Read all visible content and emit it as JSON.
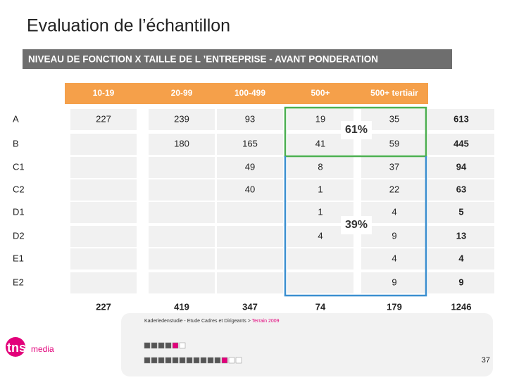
{
  "header": {
    "title": "Evaluation de l’échantillon",
    "banner": "NIVEAU DE FONCTION  X TAILLE DE L ’ENTREPRISE - AVANT PONDERATION"
  },
  "table": {
    "columns": [
      "10-19",
      "20-99",
      "100-499",
      "500+",
      "500+ tertiair"
    ],
    "rows": [
      {
        "label": "A",
        "cells": [
          227,
          239,
          93,
          19,
          35,
          613
        ]
      },
      {
        "label": "B",
        "cells": [
          null,
          180,
          165,
          41,
          59,
          445
        ]
      },
      {
        "label": "C1",
        "cells": [
          null,
          null,
          49,
          8,
          37,
          94
        ]
      },
      {
        "label": "C2",
        "cells": [
          null,
          null,
          40,
          1,
          22,
          63
        ]
      },
      {
        "label": "D1",
        "cells": [
          null,
          null,
          null,
          1,
          4,
          5
        ]
      },
      {
        "label": "D2",
        "cells": [
          null,
          null,
          null,
          4,
          9,
          13
        ]
      },
      {
        "label": "E1",
        "cells": [
          null,
          null,
          null,
          null,
          4,
          4
        ]
      },
      {
        "label": "E2",
        "cells": [
          null,
          null,
          null,
          null,
          9,
          9
        ]
      }
    ],
    "totals": [
      227,
      419,
      347,
      74,
      179,
      1246
    ]
  },
  "annotations": {
    "upper": "61%",
    "lower": "39%"
  },
  "footer": {
    "source": "Kaderledenstudie - Etude Cadres et Dirigeants >",
    "source_highlight": "Terrain 2009",
    "page": 37,
    "logo": "tns",
    "logo_sub": "media"
  }
}
